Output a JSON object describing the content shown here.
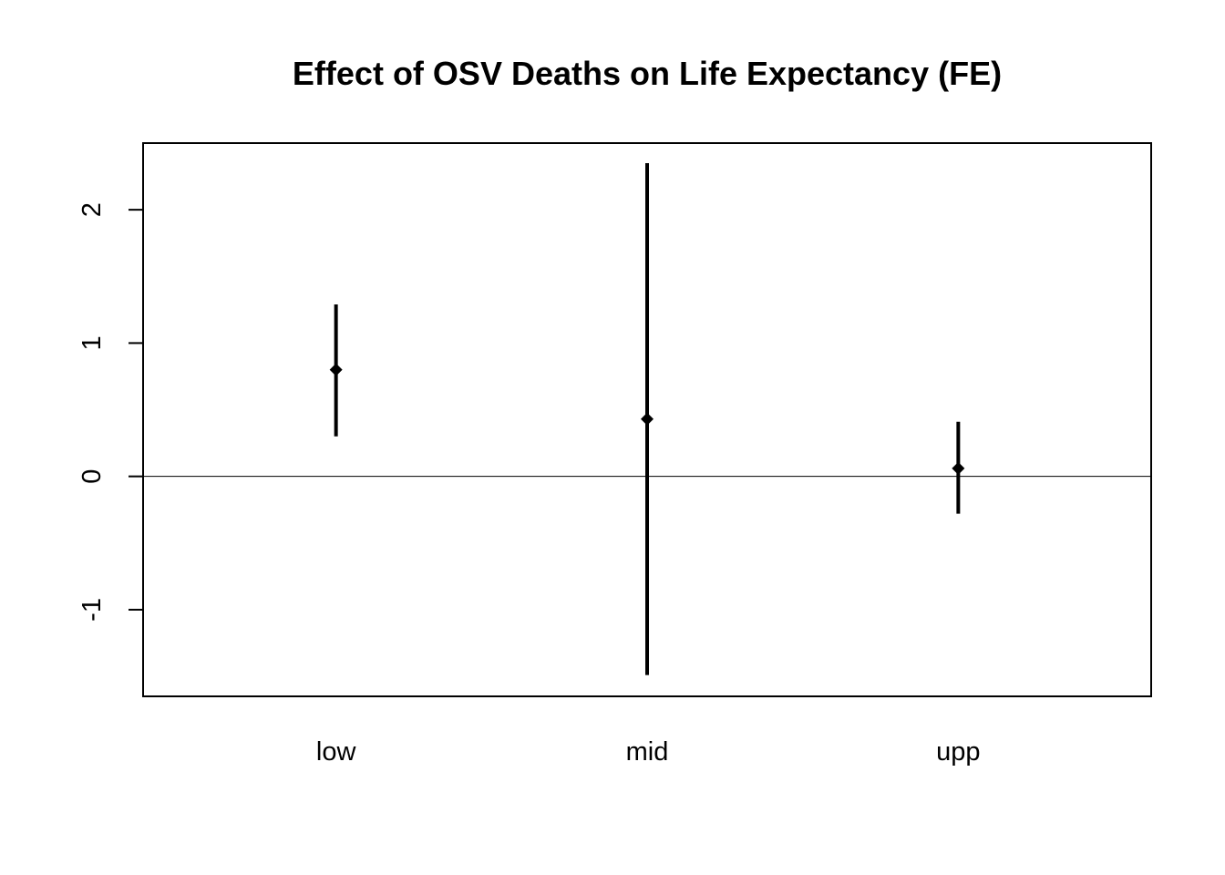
{
  "chart_data": {
    "type": "scatter",
    "subtype": "coefficient-plot-with-confidence-intervals",
    "title": "Effect of OSV Deaths on Life Expectancy (FE)",
    "xlabel": "",
    "ylabel": "",
    "categories": [
      "low",
      "mid",
      "upp"
    ],
    "series": [
      {
        "estimates": [
          0.8,
          0.43,
          0.06
        ],
        "lower": [
          0.3,
          -1.49,
          -0.28
        ],
        "upper": [
          1.29,
          2.35,
          0.41
        ]
      }
    ],
    "ylim": [
      -1.65,
      2.5
    ],
    "yticks": [
      -1,
      0,
      1,
      2
    ],
    "ytick_labels": [
      "-1",
      "0",
      "1",
      "2"
    ],
    "reference_line_y": 0,
    "grid": false,
    "legend": "none",
    "colors": {
      "marks": "#000000",
      "background": "#ffffff"
    }
  }
}
